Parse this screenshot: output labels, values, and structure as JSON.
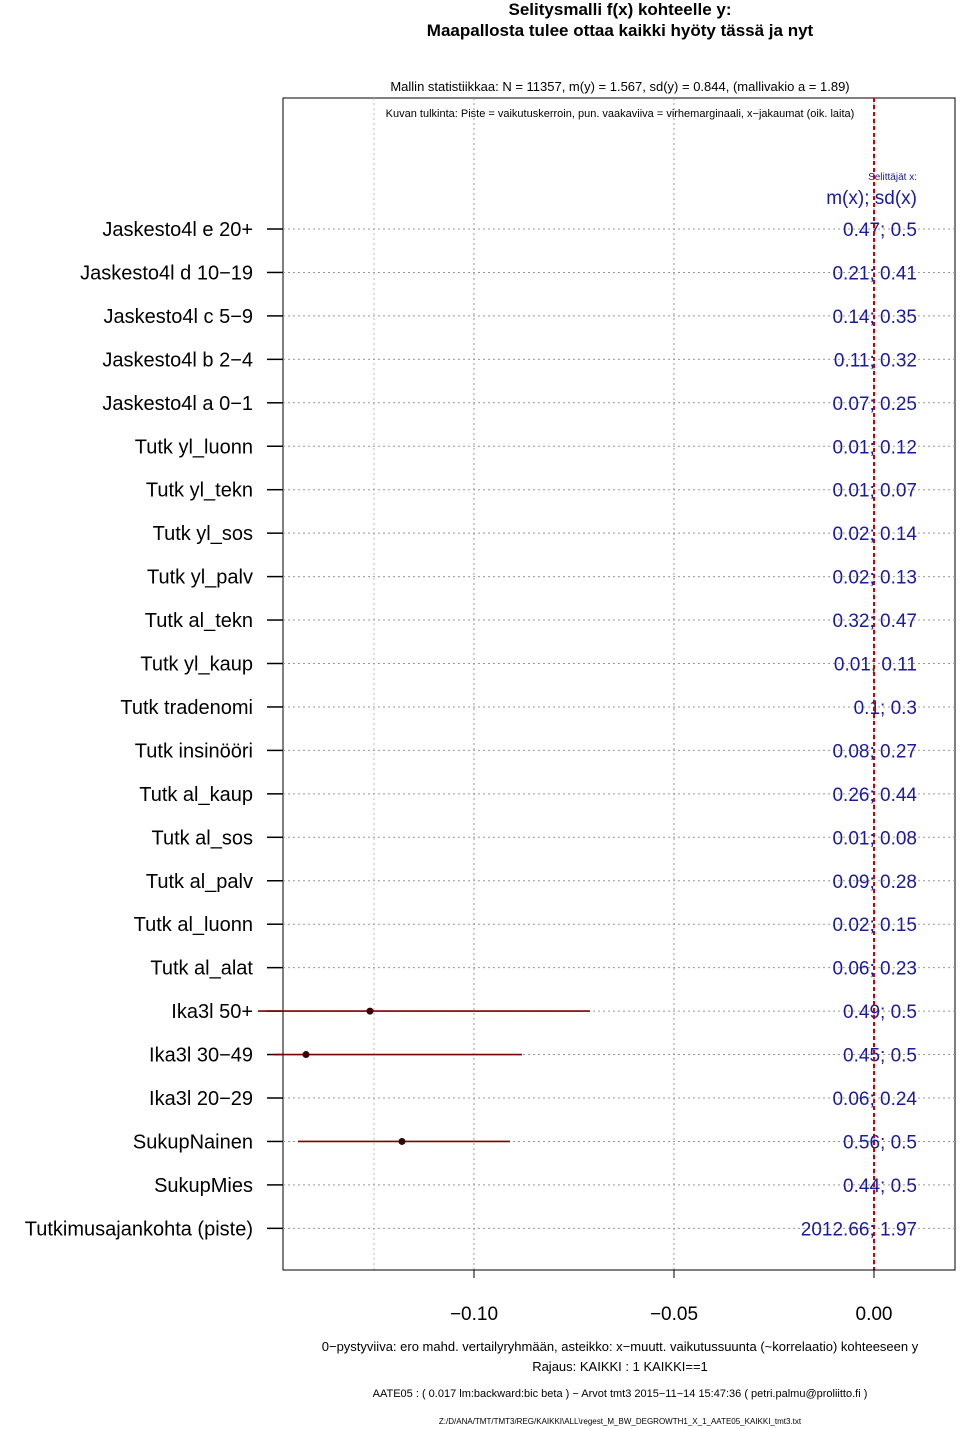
{
  "title": "Selitysmalli f(x) kohteelle y:",
  "subtitle": "Maapallosta tulee ottaa kaikki hyöty tässä ja nyt",
  "stats_line": "Mallin statistiikkaa: N = 11357, m(y) = 1.567, sd(y) = 0.844, (mallivakio a = 1.89)",
  "legend_line": "Kuvan tulkinta: Piste = vaikutuskerroin, pun. vaakaviiva = virhemarginaali, x−jakaumat (oik. laita)",
  "right_header_small": "Selittäjät x:",
  "right_header": "m(x); sd(x)",
  "footer_line1": "0−pystyviiva: ero mahd. vertailyryhmään, asteikko: x−muutt. vaikutussuunta (~korrelaatio) kohteeseen y",
  "footer_line2": "Rajaus: KAIKKI : 1  KAIKKI==1",
  "footer_line3": "AATE05 : ( 0.017 lm:backward:bic beta )   −   Arvot tmt3 2015−11−14 15:47:36 ( petri.palmu@proliitto.fi )",
  "footer_line4": "Z:/D/ANA/TMT/TMT3/REG/KAIKKI\\ALL\\regest_M_BW_DEGROWTH1_X_1_AATE05_KAIKKI_tmt3.txt",
  "colors": {
    "ci_line": "#7a0000",
    "point": "#3a0000",
    "zero_line": "#cc0000",
    "right_text": "#1a1aa0"
  },
  "chart_data": {
    "type": "forest",
    "xlim": [
      -0.14,
      0.015
    ],
    "xticks": [
      -0.1,
      -0.05,
      0.0
    ],
    "xtick_labels": [
      "−0.10",
      "−0.05",
      "0.00"
    ],
    "zero_line": 0.0,
    "rows": [
      {
        "label": "Jaskesto4l e 20+",
        "mx_sd": "0.47; 0.5",
        "coef": null,
        "lo": null,
        "hi": null
      },
      {
        "label": "Jaskesto4l d 10−19",
        "mx_sd": "0.21; 0.41",
        "coef": null,
        "lo": null,
        "hi": null
      },
      {
        "label": "Jaskesto4l c 5−9",
        "mx_sd": "0.14; 0.35",
        "coef": null,
        "lo": null,
        "hi": null
      },
      {
        "label": "Jaskesto4l b 2−4",
        "mx_sd": "0.11; 0.32",
        "coef": null,
        "lo": null,
        "hi": null
      },
      {
        "label": "Jaskesto4l a 0−1",
        "mx_sd": "0.07; 0.25",
        "coef": null,
        "lo": null,
        "hi": null
      },
      {
        "label": "Tutk yl_luonn",
        "mx_sd": "0.01; 0.12",
        "coef": null,
        "lo": null,
        "hi": null
      },
      {
        "label": "Tutk yl_tekn",
        "mx_sd": "0.01; 0.07",
        "coef": null,
        "lo": null,
        "hi": null
      },
      {
        "label": "Tutk yl_sos",
        "mx_sd": "0.02; 0.14",
        "coef": null,
        "lo": null,
        "hi": null
      },
      {
        "label": "Tutk yl_palv",
        "mx_sd": "0.02; 0.13",
        "coef": null,
        "lo": null,
        "hi": null
      },
      {
        "label": "Tutk al_tekn",
        "mx_sd": "0.32; 0.47",
        "coef": null,
        "lo": null,
        "hi": null
      },
      {
        "label": "Tutk yl_kaup",
        "mx_sd": "0.01; 0.11",
        "coef": null,
        "lo": null,
        "hi": null
      },
      {
        "label": "Tutk tradenomi",
        "mx_sd": "0.1; 0.3",
        "coef": null,
        "lo": null,
        "hi": null
      },
      {
        "label": "Tutk insinööri",
        "mx_sd": "0.08; 0.27",
        "coef": null,
        "lo": null,
        "hi": null
      },
      {
        "label": "Tutk al_kaup",
        "mx_sd": "0.26; 0.44",
        "coef": null,
        "lo": null,
        "hi": null
      },
      {
        "label": "Tutk al_sos",
        "mx_sd": "0.01; 0.08",
        "coef": null,
        "lo": null,
        "hi": null
      },
      {
        "label": "Tutk al_palv",
        "mx_sd": "0.09; 0.28",
        "coef": null,
        "lo": null,
        "hi": null
      },
      {
        "label": "Tutk al_luonn",
        "mx_sd": "0.02; 0.15",
        "coef": null,
        "lo": null,
        "hi": null
      },
      {
        "label": "Tutk al_alat",
        "mx_sd": "0.06; 0.23",
        "coef": null,
        "lo": null,
        "hi": null
      },
      {
        "label": "Ika3l 50+",
        "mx_sd": "0.49; 0.5",
        "coef": -0.126,
        "lo": -0.154,
        "hi": -0.071
      },
      {
        "label": "Ika3l 30−49",
        "mx_sd": "0.45; 0.5",
        "coef": -0.142,
        "lo": -0.15,
        "hi": -0.088
      },
      {
        "label": "Ika3l 20−29",
        "mx_sd": "0.06; 0.24",
        "coef": null,
        "lo": null,
        "hi": null
      },
      {
        "label": "SukupNainen",
        "mx_sd": "0.56; 0.5",
        "coef": -0.118,
        "lo": -0.144,
        "hi": -0.091
      },
      {
        "label": "SukupMies",
        "mx_sd": "0.44; 0.5",
        "coef": null,
        "lo": null,
        "hi": null
      },
      {
        "label": "Tutkimusajankohta (piste)",
        "mx_sd": "2012.66; 1.97",
        "coef": null,
        "lo": null,
        "hi": null
      }
    ]
  }
}
